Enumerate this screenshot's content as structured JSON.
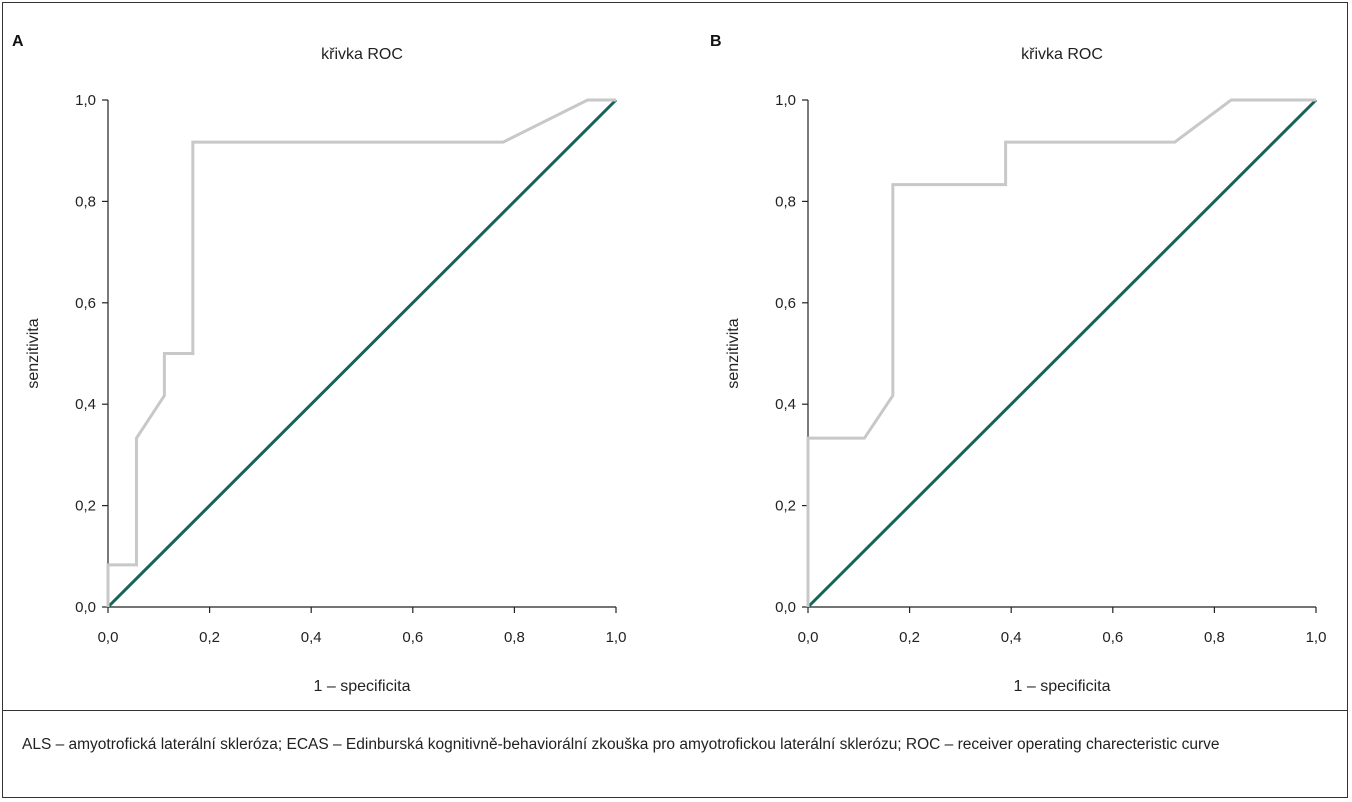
{
  "caption": "ALS – amyotrofická laterální skleróza; ECAS – Edinburská kognitivně-behaviorální zkouška pro amyotrofickou laterální sklerózu; ROC – receiver operating charecteristic curve",
  "colors": {
    "roc_curve": "#c8c8c8",
    "reference_line": "#17635a",
    "axis": "#222222"
  },
  "chart_data": [
    {
      "panel": "A",
      "type": "line",
      "title": "křivka ROC",
      "xlabel": "1 – specificita",
      "ylabel": "senzitivita",
      "xlim": [
        0,
        1
      ],
      "ylim": [
        0,
        1
      ],
      "x_ticks": [
        "0,0",
        "0,2",
        "0,4",
        "0,6",
        "0,8",
        "1,0"
      ],
      "y_ticks": [
        "0,0",
        "0,2",
        "0,4",
        "0,6",
        "0,8",
        "1,0"
      ],
      "grid": false,
      "series": [
        {
          "x": [
            0,
            0,
            0.056,
            0.056,
            0.111,
            0.111,
            0.167,
            0.167,
            0.778,
            0.944,
            1.0
          ],
          "y": [
            0,
            0.083,
            0.083,
            0.333,
            0.417,
            0.5,
            0.5,
            0.917,
            0.917,
            1.0,
            1.0
          ]
        },
        {
          "x": [
            0,
            1
          ],
          "y": [
            0,
            1
          ]
        }
      ]
    },
    {
      "panel": "B",
      "type": "line",
      "title": "křivka ROC",
      "xlabel": "1 – specificita",
      "ylabel": "senzitivita",
      "xlim": [
        0,
        1
      ],
      "ylim": [
        0,
        1
      ],
      "x_ticks": [
        "0,0",
        "0,2",
        "0,4",
        "0,6",
        "0,8",
        "1,0"
      ],
      "y_ticks": [
        "0,0",
        "0,2",
        "0,4",
        "0,6",
        "0,8",
        "1,0"
      ],
      "grid": false,
      "series": [
        {
          "x": [
            0,
            0,
            0.111,
            0.167,
            0.167,
            0.389,
            0.389,
            0.722,
            0.833,
            1.0
          ],
          "y": [
            0,
            0.333,
            0.333,
            0.417,
            0.833,
            0.833,
            0.917,
            0.917,
            1.0,
            1.0
          ]
        },
        {
          "x": [
            0,
            1
          ],
          "y": [
            0,
            1
          ]
        }
      ]
    }
  ]
}
